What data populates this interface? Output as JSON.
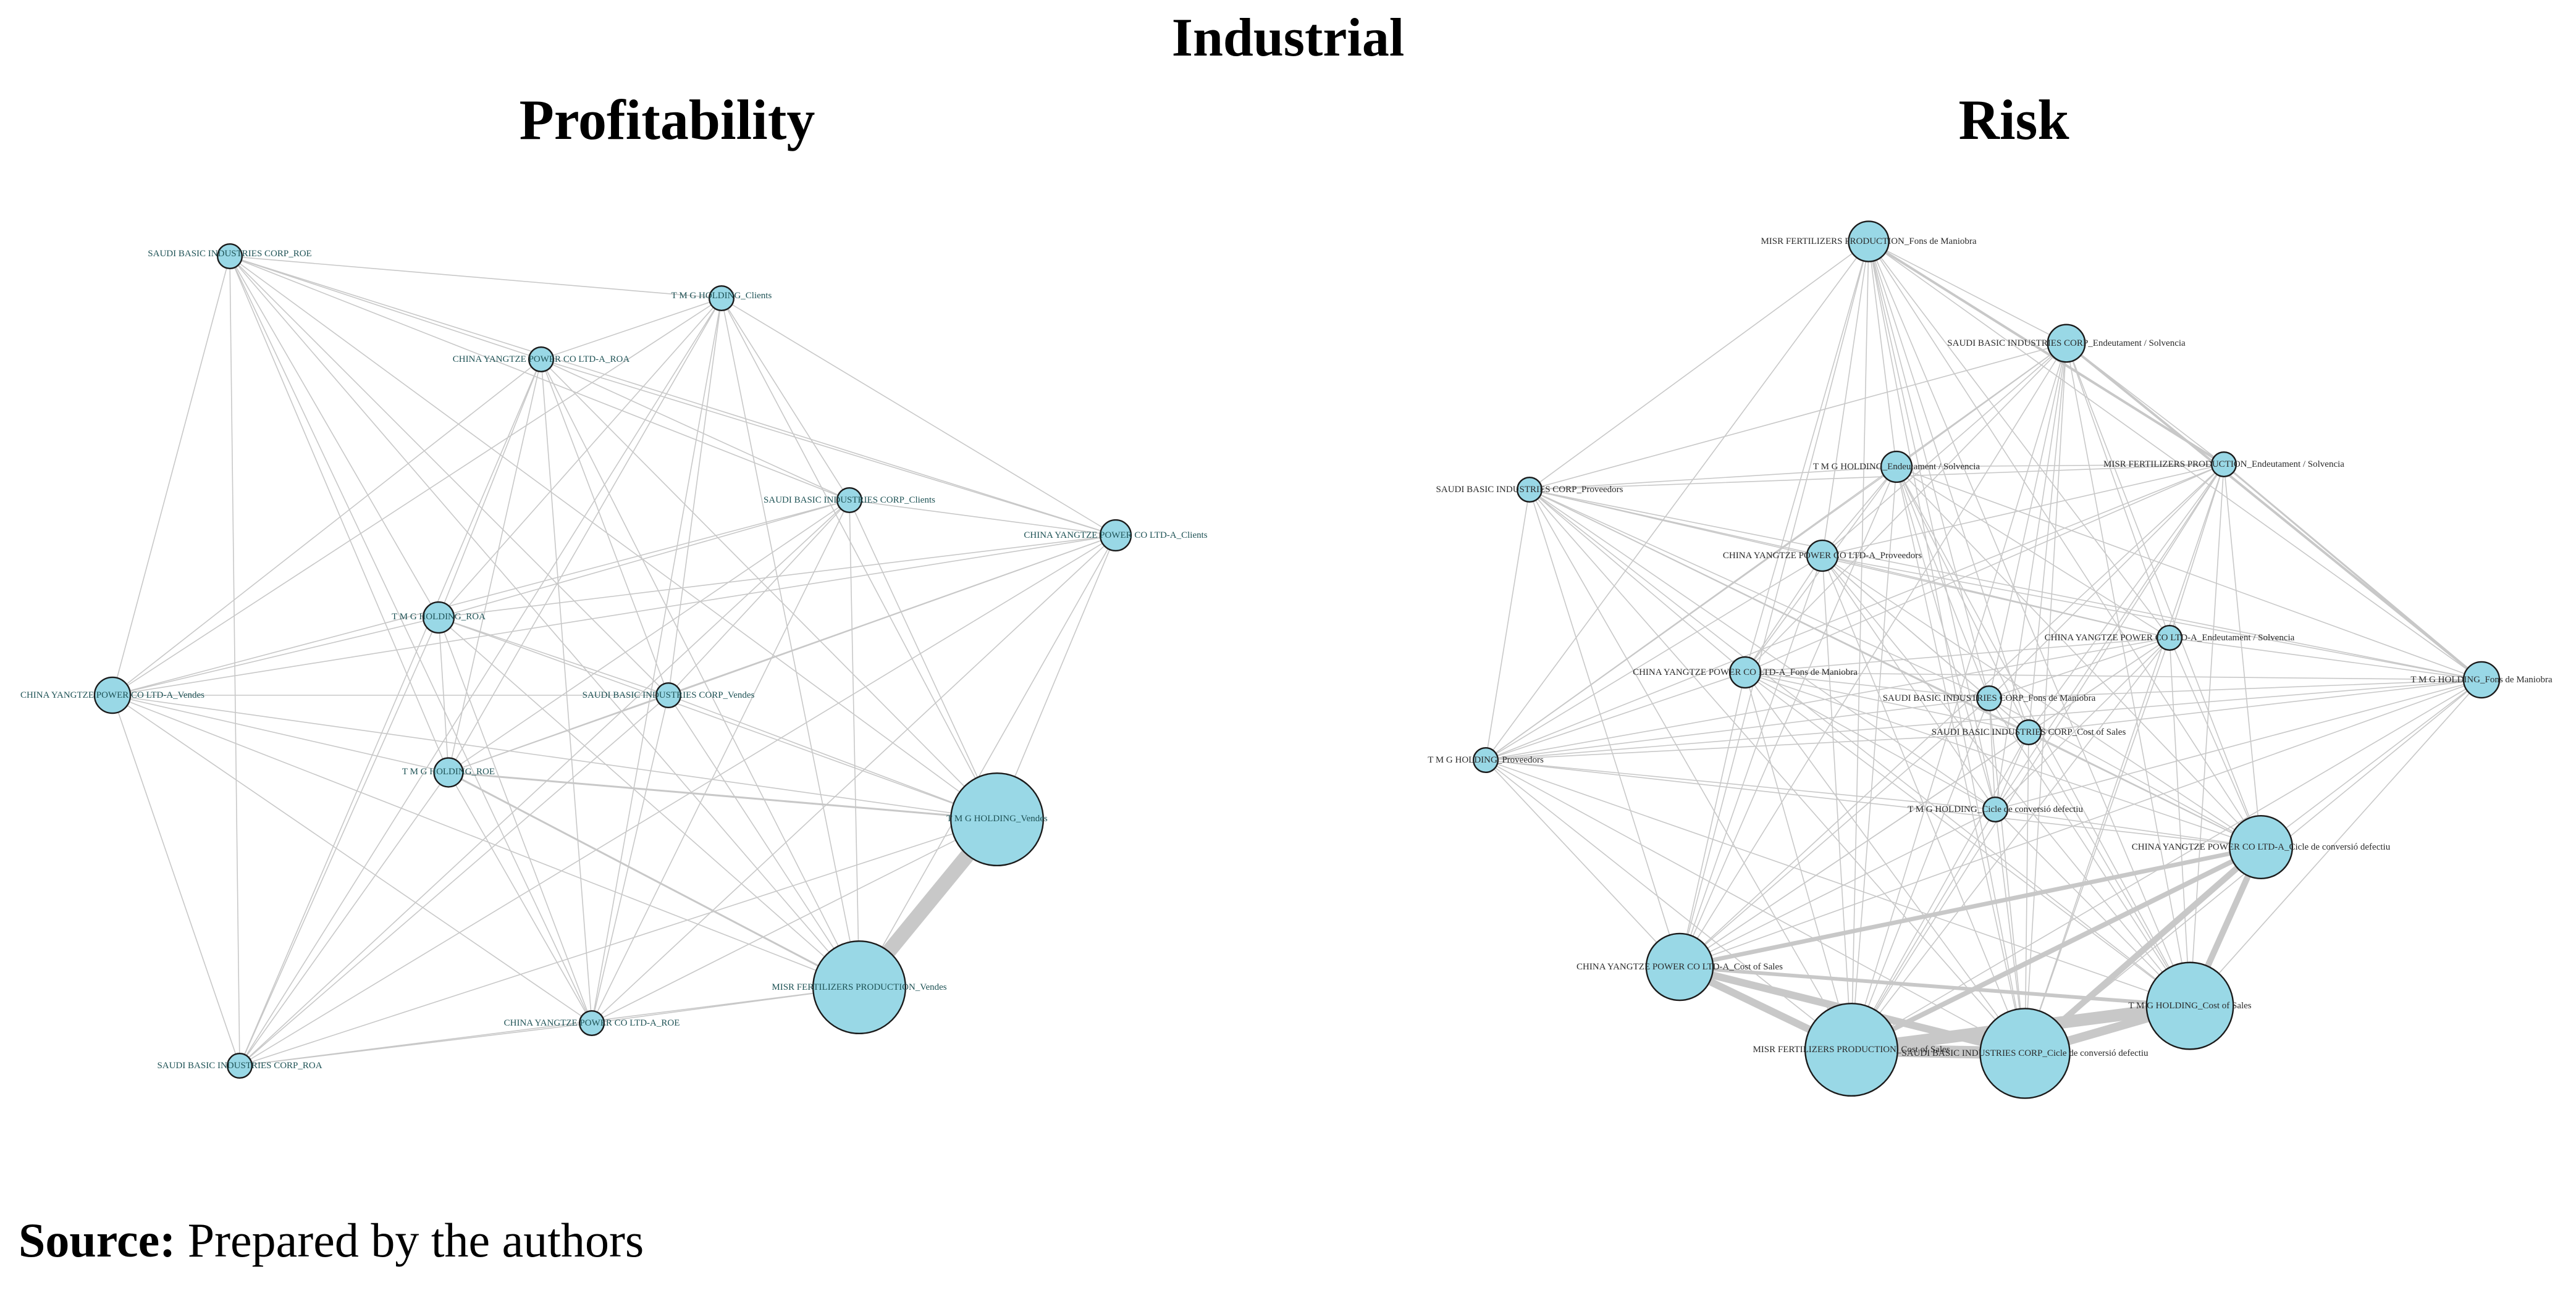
{
  "figure": {
    "title": "Industrial",
    "source_label": "Source:",
    "source_text": " Prepared by the authors"
  },
  "panels": [
    {
      "key": "left",
      "title": "Profitability",
      "nodes": [
        {
          "label": "SAUDI BASIC INDUSTRIES CORP_ROE",
          "size": 8
        },
        {
          "label": "T M G HOLDING_Clients",
          "size": 8
        },
        {
          "label": "CHINA YANGTZE POWER CO LTD-A_ROA",
          "size": 8
        },
        {
          "label": "SAUDI BASIC INDUSTRIES CORP_Clients",
          "size": 8
        },
        {
          "label": "CHINA YANGTZE POWER CO LTD-A_Clients",
          "size": 14
        },
        {
          "label": "T M G HOLDING_ROA",
          "size": 14
        },
        {
          "label": "CHINA YANGTZE POWER CO LTD-A_Vendes",
          "size": 20
        },
        {
          "label": "SAUDI BASIC INDUSTRIES CORP_Vendes",
          "size": 8
        },
        {
          "label": "T M G HOLDING_ROE",
          "size": 12
        },
        {
          "label": "T M G HOLDING_Vendes",
          "size": 160
        },
        {
          "label": "MISR FERTILIZERS PRODUCTION_Vendes",
          "size": 160
        },
        {
          "label": "CHINA YANGTZE POWER CO LTD-A_ROE",
          "size": 8
        },
        {
          "label": "SAUDI BASIC INDUSTRIES CORP_ROA",
          "size": 8
        }
      ]
    },
    {
      "key": "right",
      "title": "Risk",
      "nodes": [
        {
          "label": "MISR FERTILIZERS PRODUCTION_Fons de Maniobra",
          "size": 26
        },
        {
          "label": "SAUDI BASIC INDUSTRIES CORP_Endeutament / Solvencia",
          "size": 22
        },
        {
          "label": "T M G HOLDING_Endeutament / Solvencia",
          "size": 14
        },
        {
          "label": "MISR FERTILIZERS PRODUCTION_Endeutament / Solvencia",
          "size": 8
        },
        {
          "label": "SAUDI BASIC INDUSTRIES CORP_Proveedors",
          "size": 8
        },
        {
          "label": "CHINA YANGTZE POWER CO LTD-A_Proveedors",
          "size": 14
        },
        {
          "label": "CHINA YANGTZE POWER CO LTD-A_Endeutament / Solvencia",
          "size": 8
        },
        {
          "label": "T M G HOLDING_Fons de Maniobra",
          "size": 20
        },
        {
          "label": "CHINA YANGTZE POWER CO LTD-A_Fons de Maniobra",
          "size": 14
        },
        {
          "label": "SAUDI BASIC INDUSTRIES CORP_Fons de Maniobra",
          "size": 8
        },
        {
          "label": "SAUDI BASIC INDUSTRIES CORP_Cost of Sales",
          "size": 8
        },
        {
          "label": "T M G HOLDING_Proveedors",
          "size": 8
        },
        {
          "label": "T M G HOLDING_Cicle de conversió defectiu",
          "size": 8
        },
        {
          "label": "CHINA YANGTZE POWER CO LTD-A_Cicle de conversió defectiu",
          "size": 70
        },
        {
          "label": "CHINA YANGTZE POWER CO LTD-A_Cost of Sales",
          "size": 80
        },
        {
          "label": "T M G HOLDING_Cost of Sales",
          "size": 140
        },
        {
          "label": "MISR FERTILIZERS PRODUCTION_Cost of Sales",
          "size": 160
        },
        {
          "label": "SAUDI BASIC INDUSTRIES CORP_Cicle de conversió defectiu",
          "size": 150
        }
      ]
    }
  ]
}
